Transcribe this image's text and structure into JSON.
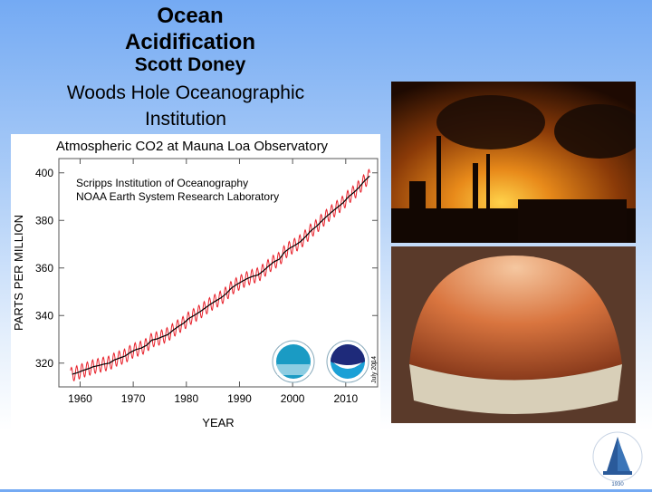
{
  "slide": {
    "title": "Ocean Acidification",
    "author": "Scott Doney",
    "institution": "Woods Hole Oceanographic Institution"
  },
  "logo": {
    "text": "WOODS HOLE OCEANOGRAPHIC INSTITUTION",
    "year": "1930"
  },
  "photos": [
    {
      "subject": "smokestacks-at-sunset"
    },
    {
      "subject": "scallop-shell"
    }
  ],
  "chart_data": {
    "type": "line",
    "title": "Atmospheric CO2 at Mauna Loa Observatory",
    "credits": [
      "Scripps Institution of Oceanography",
      "NOAA Earth System Research Laboratory"
    ],
    "date_stamp": "July 2014",
    "xlabel": "YEAR",
    "ylabel": "PARTS PER MILLION",
    "xlim": [
      1956,
      2016
    ],
    "ylim": [
      310,
      406
    ],
    "xticks": [
      1960,
      1970,
      1980,
      1990,
      2000,
      2010
    ],
    "yticks": [
      320,
      340,
      360,
      380,
      400
    ],
    "series_colors": {
      "monthly": "#e8202a",
      "annual_trend": "#000000"
    },
    "seasonal_amplitude_ppm": 3,
    "x": [
      1958,
      1959,
      1960,
      1961,
      1962,
      1963,
      1964,
      1965,
      1966,
      1967,
      1968,
      1969,
      1970,
      1971,
      1972,
      1973,
      1974,
      1975,
      1976,
      1977,
      1978,
      1979,
      1980,
      1981,
      1982,
      1983,
      1984,
      1985,
      1986,
      1987,
      1988,
      1989,
      1990,
      1991,
      1992,
      1993,
      1994,
      1995,
      1996,
      1997,
      1998,
      1999,
      2000,
      2001,
      2002,
      2003,
      2004,
      2005,
      2006,
      2007,
      2008,
      2009,
      2010,
      2011,
      2012,
      2013,
      2014
    ],
    "y": [
      315.3,
      316.0,
      316.9,
      317.6,
      318.5,
      319.0,
      319.6,
      320.0,
      321.4,
      322.2,
      323.0,
      324.6,
      325.7,
      326.3,
      327.5,
      329.7,
      330.2,
      331.1,
      332.0,
      333.8,
      335.4,
      336.8,
      338.8,
      340.1,
      341.5,
      343.1,
      344.7,
      346.1,
      347.4,
      349.2,
      351.6,
      353.1,
      354.4,
      355.6,
      356.5,
      357.1,
      358.8,
      360.8,
      362.6,
      363.7,
      366.7,
      368.4,
      369.6,
      371.1,
      373.3,
      375.8,
      377.5,
      379.8,
      381.9,
      383.8,
      385.6,
      387.4,
      389.9,
      391.7,
      393.9,
      396.5,
      398.7
    ]
  }
}
